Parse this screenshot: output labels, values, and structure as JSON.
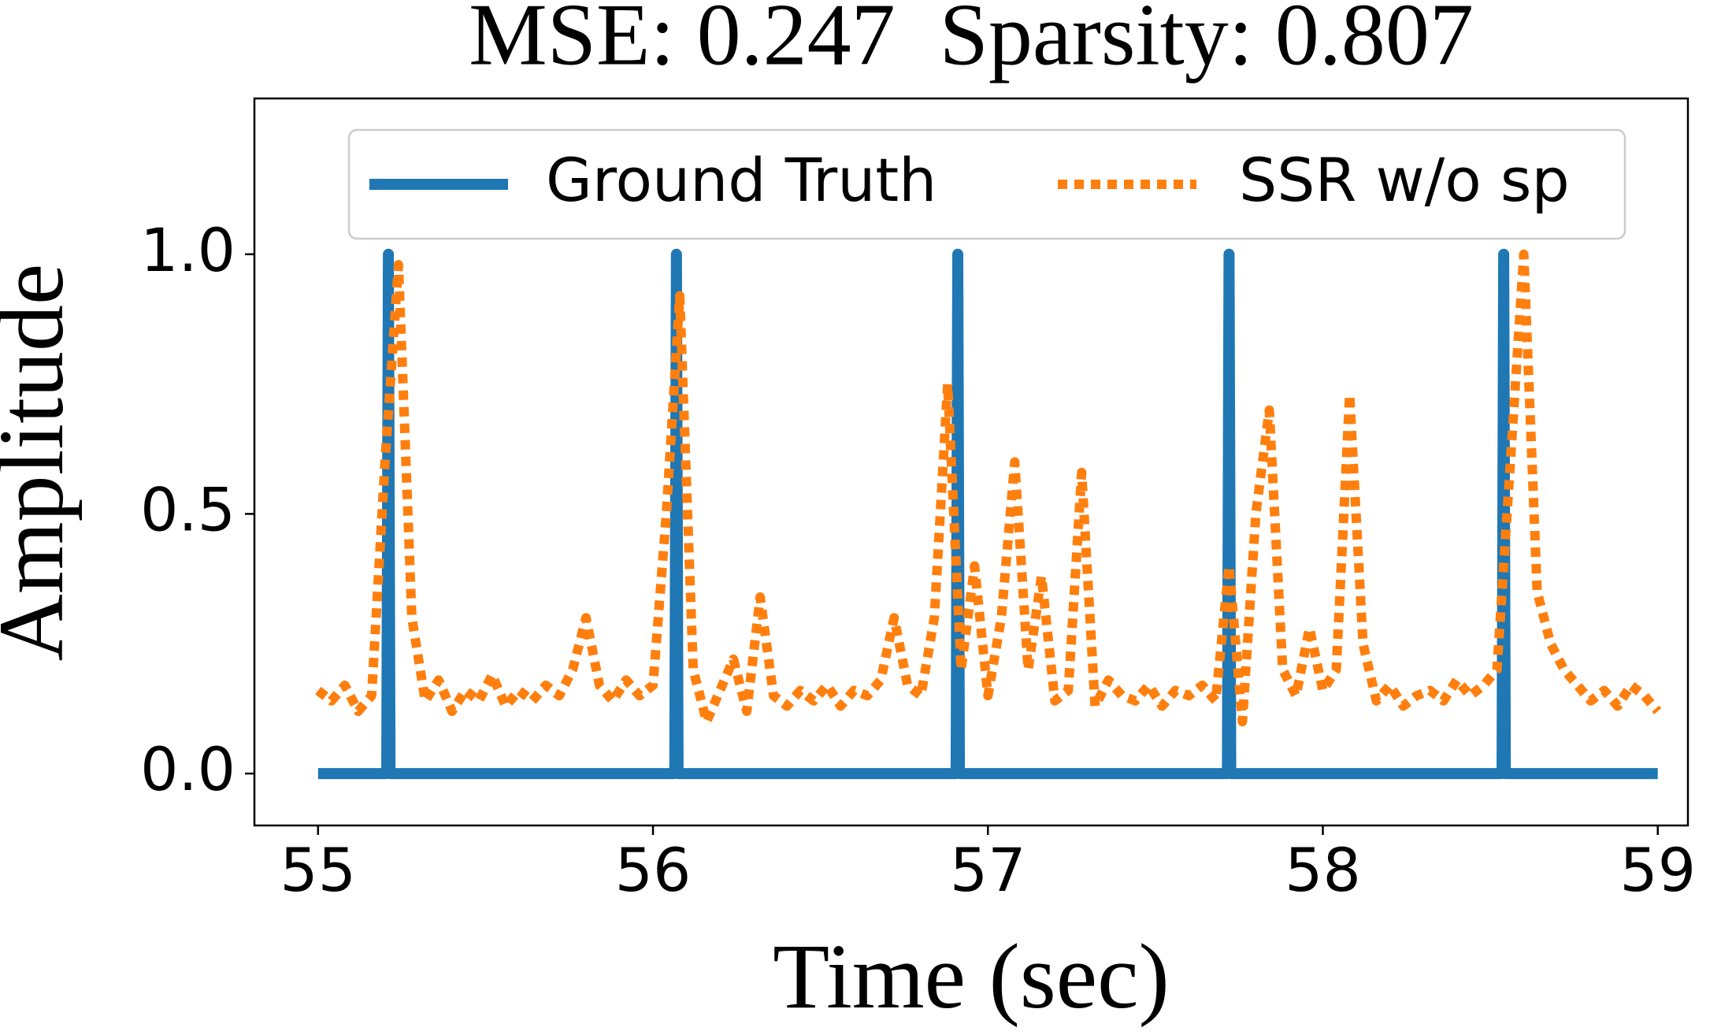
{
  "chart_data": {
    "type": "line",
    "title": "MSE: 0.247  Sparsity: 0.807",
    "x_label": "Time (sec)",
    "y_label": "Amplitude",
    "xlim": [
      54.81,
      59.09
    ],
    "ylim": [
      -0.1,
      1.3
    ],
    "xticks": [
      55,
      56,
      57,
      58,
      59
    ],
    "yticks": [
      {
        "value": 0,
        "label": "0.0"
      },
      0.5,
      {
        "value": 1,
        "label": "1.0"
      }
    ],
    "legend": "upper center",
    "series": [
      {
        "name": "Ground Truth",
        "color": "#1f77b4",
        "style": "solid",
        "x": [
          55,
          55.205,
          55.21,
          55.215,
          56.065,
          56.07,
          56.075,
          56.905,
          56.91,
          56.915,
          57.715,
          57.72,
          57.725,
          58.535,
          58.54,
          58.545,
          59
        ],
        "values": [
          0,
          0,
          1,
          0,
          0,
          1,
          0,
          0,
          1,
          0,
          0,
          1,
          0,
          0,
          1,
          0,
          0
        ]
      },
      {
        "name": "SSR w/o sp",
        "color": "#ff7f0e",
        "style": "dotted",
        "x": [
          55.0,
          55.04,
          55.08,
          55.12,
          55.16,
          55.2,
          55.24,
          55.28,
          55.32,
          55.36,
          55.4,
          55.44,
          55.48,
          55.52,
          55.56,
          55.6,
          55.64,
          55.68,
          55.72,
          55.76,
          55.8,
          55.84,
          55.88,
          55.92,
          55.96,
          56.0,
          56.04,
          56.08,
          56.12,
          56.16,
          56.2,
          56.24,
          56.28,
          56.32,
          56.36,
          56.4,
          56.44,
          56.48,
          56.52,
          56.56,
          56.6,
          56.64,
          56.68,
          56.72,
          56.76,
          56.8,
          56.84,
          56.88,
          56.92,
          56.96,
          57.0,
          57.04,
          57.08,
          57.12,
          57.16,
          57.2,
          57.24,
          57.28,
          57.32,
          57.36,
          57.4,
          57.44,
          57.48,
          57.52,
          57.56,
          57.6,
          57.64,
          57.68,
          57.72,
          57.76,
          57.8,
          57.84,
          57.88,
          57.92,
          57.96,
          58.0,
          58.04,
          58.08,
          58.12,
          58.16,
          58.2,
          58.24,
          58.28,
          58.32,
          58.36,
          58.4,
          58.44,
          58.48,
          58.52,
          58.56,
          58.6,
          58.64,
          58.68,
          58.72,
          58.76,
          58.8,
          58.84,
          58.88,
          58.92,
          58.96,
          59.0
        ],
        "values": [
          0.16,
          0.14,
          0.17,
          0.12,
          0.15,
          0.6,
          0.98,
          0.3,
          0.14,
          0.18,
          0.12,
          0.16,
          0.14,
          0.19,
          0.13,
          0.16,
          0.14,
          0.17,
          0.15,
          0.2,
          0.3,
          0.17,
          0.14,
          0.18,
          0.15,
          0.17,
          0.5,
          0.92,
          0.2,
          0.1,
          0.16,
          0.22,
          0.12,
          0.34,
          0.15,
          0.13,
          0.16,
          0.14,
          0.17,
          0.13,
          0.16,
          0.15,
          0.18,
          0.3,
          0.17,
          0.15,
          0.3,
          0.75,
          0.2,
          0.4,
          0.15,
          0.3,
          0.6,
          0.2,
          0.38,
          0.14,
          0.16,
          0.58,
          0.13,
          0.18,
          0.15,
          0.14,
          0.17,
          0.13,
          0.16,
          0.15,
          0.17,
          0.14,
          0.4,
          0.1,
          0.5,
          0.7,
          0.2,
          0.15,
          0.28,
          0.16,
          0.2,
          0.73,
          0.25,
          0.14,
          0.17,
          0.13,
          0.15,
          0.16,
          0.14,
          0.18,
          0.15,
          0.17,
          0.2,
          0.6,
          1.0,
          0.35,
          0.25,
          0.2,
          0.17,
          0.14,
          0.16,
          0.13,
          0.17,
          0.15,
          0.12
        ]
      }
    ]
  }
}
